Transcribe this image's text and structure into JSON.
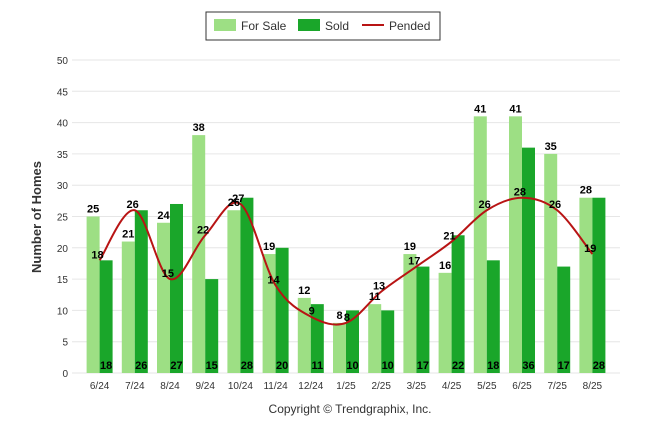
{
  "chart_data": {
    "type": "bar",
    "title": "",
    "xlabel": "",
    "ylabel": "Number of Homes",
    "ylim": [
      0,
      50
    ],
    "yticks": [
      0,
      5,
      10,
      15,
      20,
      25,
      30,
      35,
      40,
      45,
      50
    ],
    "grid": true,
    "legend_position": "top-center",
    "categories": [
      "6/24",
      "7/24",
      "8/24",
      "9/24",
      "10/24",
      "11/24",
      "12/24",
      "1/25",
      "2/25",
      "3/25",
      "4/25",
      "5/25",
      "6/25",
      "7/25",
      "8/25"
    ],
    "series": [
      {
        "name": "For Sale",
        "type": "bar",
        "color": "#9ddf84",
        "values": [
          25,
          21,
          24,
          38,
          26,
          19,
          12,
          8,
          11,
          19,
          16,
          41,
          41,
          35,
          28
        ]
      },
      {
        "name": "Sold",
        "type": "bar",
        "color": "#1aa62a",
        "values": [
          18,
          26,
          27,
          15,
          28,
          20,
          11,
          10,
          10,
          17,
          22,
          18,
          36,
          17,
          28
        ]
      },
      {
        "name": "Pended",
        "type": "line",
        "color": "#b81414",
        "values": [
          18,
          26,
          15,
          22,
          27,
          14,
          9,
          8,
          13,
          17,
          21,
          26,
          28,
          26,
          19
        ]
      }
    ]
  },
  "footer": {
    "copyright": "Copyright © Trendgraphix, Inc."
  }
}
